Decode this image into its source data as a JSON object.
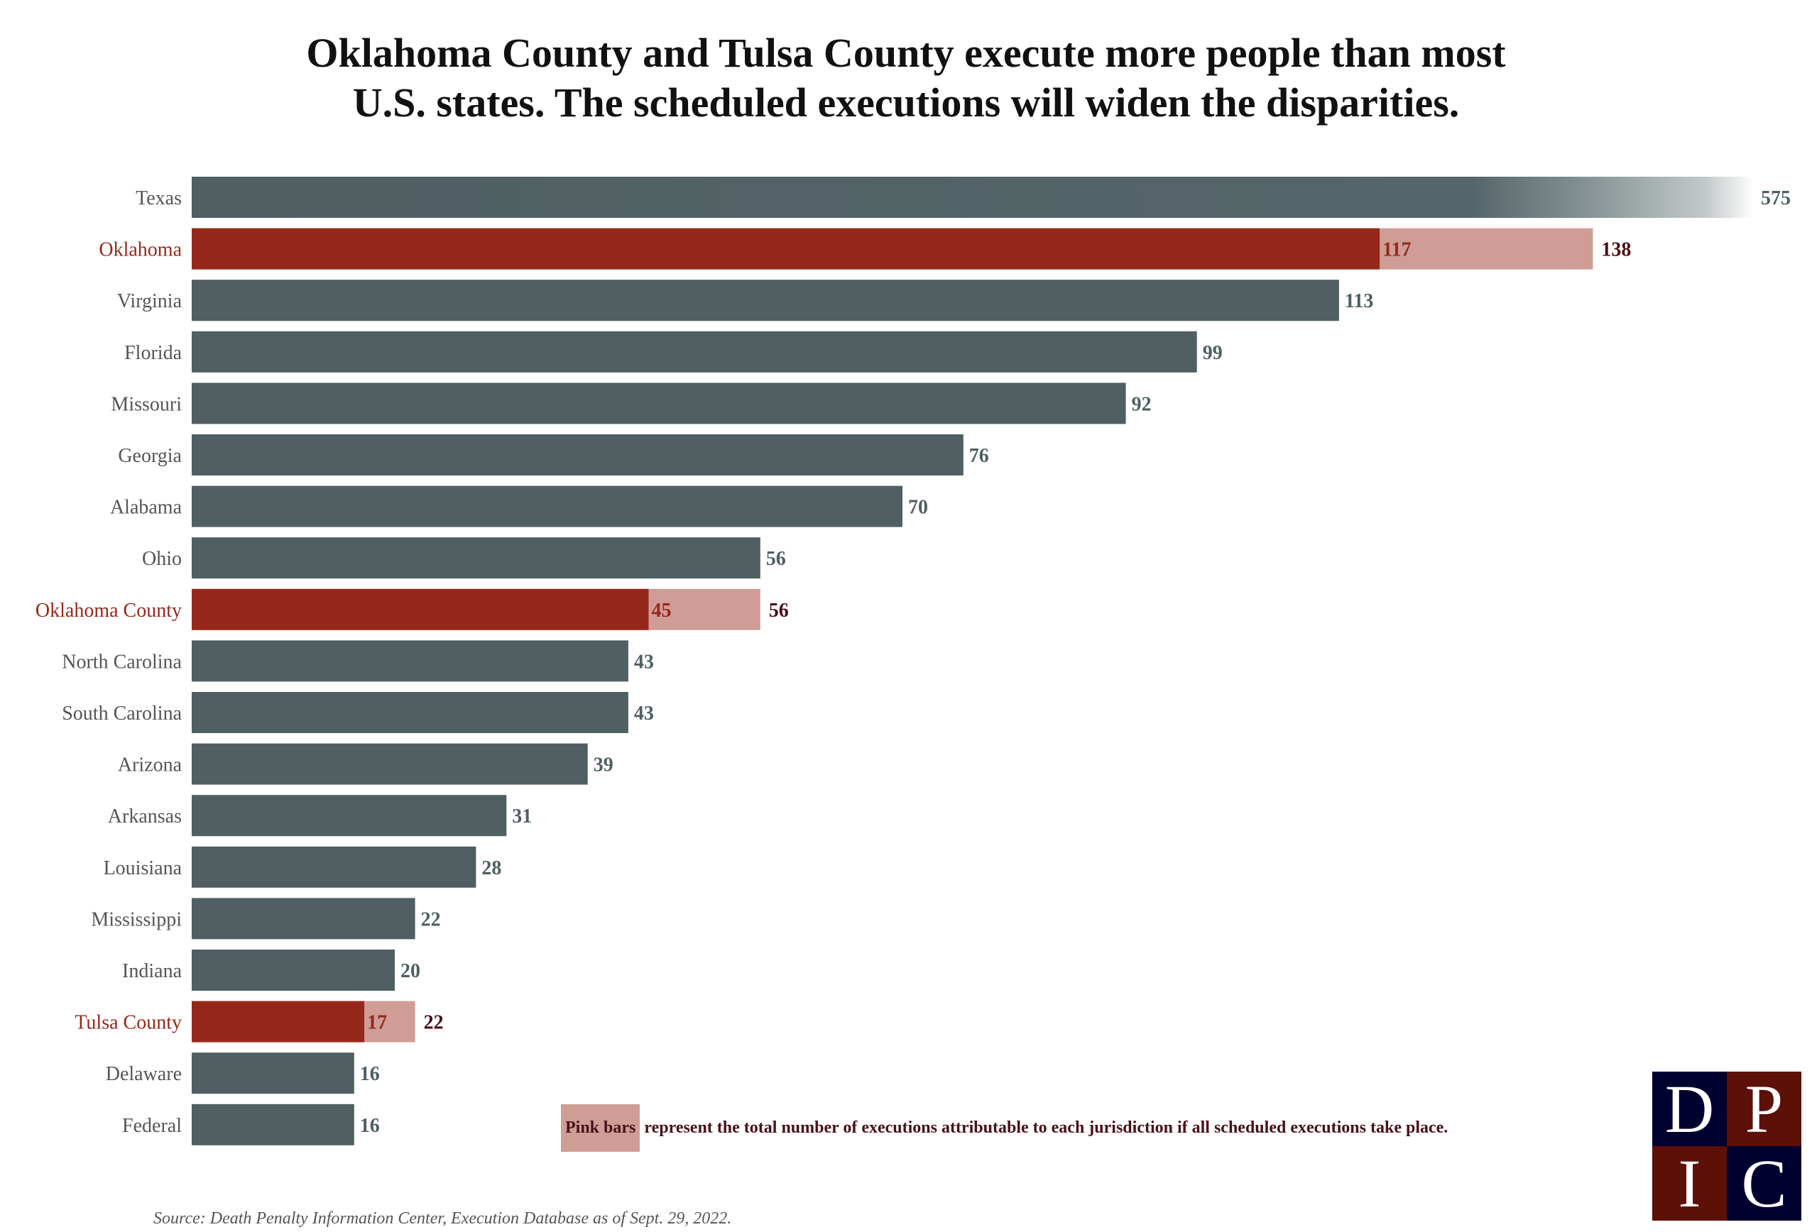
{
  "chart_data": {
    "type": "bar",
    "orientation": "horizontal",
    "title": "Oklahoma County and Tulsa County execute more people than most U.S. states. The scheduled executions will widen the disparities.",
    "title_lines": [
      "Oklahoma County and Tulsa County execute more people than most",
      "U.S. states. The scheduled executions will widen the disparities."
    ],
    "categories": [
      "Texas",
      "Oklahoma",
      "Virginia",
      "Florida",
      "Missouri",
      "Georgia",
      "Alabama",
      "Ohio",
      "Oklahoma County",
      "North Carolina",
      "South Carolina",
      "Arizona",
      "Arkansas",
      "Louisiana",
      "Mississippi",
      "Indiana",
      "Tulsa County",
      "Delaware",
      "Federal"
    ],
    "series": [
      {
        "name": "Executions",
        "values": [
          575,
          117,
          113,
          99,
          92,
          76,
          70,
          56,
          45,
          43,
          43,
          39,
          31,
          28,
          22,
          20,
          17,
          16,
          16
        ]
      },
      {
        "name": "Total if all scheduled executions take place",
        "values": [
          null,
          138,
          null,
          null,
          null,
          null,
          null,
          null,
          56,
          null,
          null,
          null,
          null,
          null,
          null,
          null,
          22,
          null,
          null
        ]
      }
    ],
    "highlighted": [
      "Oklahoma",
      "Oklahoma County",
      "Tulsa County"
    ],
    "truncated": [
      "Texas"
    ],
    "xlabel": "",
    "ylabel": "",
    "grid": false,
    "legend": {
      "label": "Pink bars",
      "text": "represent the total number of executions attributable to each jurisdiction if all scheduled executions take place.",
      "placement": "bottom-right"
    },
    "source": "Source: Death Penalty Information Center, Execution Database as of Sept. 29, 2022.",
    "colors": {
      "bar": "#4f5f62",
      "highlight": "#96281b",
      "pink": "#cf9d96",
      "total_label": "#4a1018"
    }
  },
  "logo": {
    "letters": [
      "D",
      "P",
      "I",
      "C"
    ]
  }
}
